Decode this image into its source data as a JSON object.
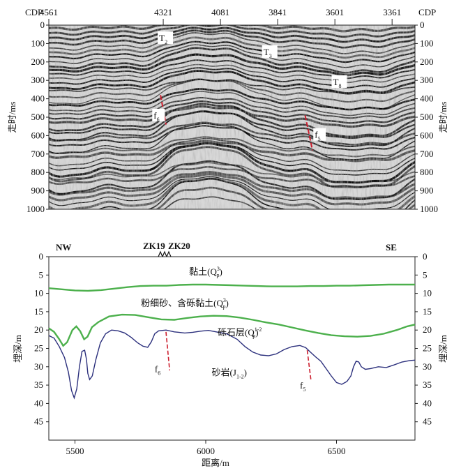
{
  "seismic_section": {
    "cdp_label": "CDP",
    "cdp_ticks": [
      "4561",
      "4321",
      "4081",
      "3841",
      "3601",
      "3361"
    ],
    "cdp_tick_pos": [
      0.0,
      0.3125,
      0.4688,
      0.625,
      0.7813,
      0.9375
    ],
    "time_axis_label": "走时/ms",
    "time_ticks": [
      0,
      100,
      200,
      300,
      400,
      500,
      600,
      700,
      800,
      900,
      1000
    ],
    "horizons": [
      {
        "label": "T",
        "sub": "2",
        "x": 0.305,
        "y_ms": 80
      },
      {
        "label": "T",
        "sub": "3",
        "x": 0.59,
        "y_ms": 155
      },
      {
        "label": "T",
        "sub": "8",
        "x": 0.78,
        "y_ms": 318
      }
    ],
    "faults": [
      {
        "label": "f",
        "sub": "6",
        "x": 0.29,
        "y_ms": 500,
        "trace": [
          [
            0.305,
            380
          ],
          [
            0.32,
            540
          ]
        ]
      },
      {
        "label": "f",
        "sub": "5",
        "x": 0.73,
        "y_ms": 605,
        "trace": [
          [
            0.7,
            490
          ],
          [
            0.72,
            680
          ]
        ]
      }
    ],
    "colors": {
      "trace": "#000000",
      "fault": "#cc1f2f"
    }
  },
  "depth_profile": {
    "left_title": "NW",
    "right_title": "SE",
    "boreholes": [
      "ZK19",
      "ZK20"
    ],
    "x_axis_label": "距离/m",
    "y_axis_label": "埋深/m",
    "xlim": [
      5400,
      6800
    ],
    "ylim": [
      0,
      50
    ],
    "x_ticks": [
      5500,
      6000,
      6500
    ],
    "y_ticks": [
      0,
      5,
      10,
      15,
      20,
      25,
      30,
      35,
      40,
      45
    ],
    "layers": [
      {
        "name": "黏土(Q",
        "sup": "3",
        "sub": "p",
        "tail": ")",
        "x": 6000,
        "y": 4
      },
      {
        "name": "粉细砂、含砾黏土(Q",
        "sup": "3",
        "sub": "p",
        "tail": ")",
        "x": 5920,
        "y": 12.5
      },
      {
        "name": "砾石层(Q",
        "sup": "1-2",
        "sub": "p",
        "tail": ")",
        "x": 6130,
        "y": 20.5
      },
      {
        "name": "砂岩(J",
        "sup": "",
        "sub": "1-2",
        "tail": ")",
        "x": 6090,
        "y": 31.5
      }
    ],
    "faults": [
      {
        "label": "f",
        "sub": "6",
        "x": 5805,
        "y": 30.5,
        "trace": [
          [
            5848,
            20.5
          ],
          [
            5862,
            31
          ]
        ]
      },
      {
        "label": "f",
        "sub": "5",
        "x": 6360,
        "y": 35,
        "trace": [
          [
            6388,
            25.5
          ],
          [
            6402,
            33.5
          ]
        ]
      }
    ],
    "boundary_colors": {
      "green": "#4cb04c",
      "blue": "#2b2f7c",
      "fault": "#cc1f2f"
    },
    "green_upper": [
      [
        5400,
        8.6
      ],
      [
        5450,
        8.9
      ],
      [
        5500,
        9.2
      ],
      [
        5550,
        9.3
      ],
      [
        5600,
        9.1
      ],
      [
        5650,
        8.7
      ],
      [
        5700,
        8.3
      ],
      [
        5750,
        8.0
      ],
      [
        5800,
        7.9
      ],
      [
        5850,
        7.9
      ],
      [
        5900,
        7.7
      ],
      [
        5950,
        7.6
      ],
      [
        6000,
        7.6
      ],
      [
        6050,
        7.7
      ],
      [
        6100,
        7.8
      ],
      [
        6150,
        7.9
      ],
      [
        6200,
        8.0
      ],
      [
        6250,
        8.1
      ],
      [
        6300,
        8.1
      ],
      [
        6350,
        8.1
      ],
      [
        6400,
        8.0
      ],
      [
        6450,
        8.0
      ],
      [
        6500,
        7.9
      ],
      [
        6550,
        7.9
      ],
      [
        6600,
        7.8
      ],
      [
        6650,
        7.7
      ],
      [
        6700,
        7.6
      ],
      [
        6750,
        7.6
      ],
      [
        6800,
        7.6
      ]
    ],
    "green_lower": [
      [
        5400,
        19.5
      ],
      [
        5420,
        20.5
      ],
      [
        5440,
        22.5
      ],
      [
        5455,
        24.3
      ],
      [
        5470,
        23.3
      ],
      [
        5490,
        20.0
      ],
      [
        5505,
        19.0
      ],
      [
        5520,
        20.3
      ],
      [
        5535,
        22.5
      ],
      [
        5548,
        21.8
      ],
      [
        5565,
        19.2
      ],
      [
        5590,
        17.8
      ],
      [
        5630,
        16.3
      ],
      [
        5680,
        15.8
      ],
      [
        5730,
        15.9
      ],
      [
        5780,
        16.5
      ],
      [
        5830,
        17.1
      ],
      [
        5880,
        17.2
      ],
      [
        5930,
        16.7
      ],
      [
        5980,
        16.3
      ],
      [
        6030,
        16.1
      ],
      [
        6080,
        16.2
      ],
      [
        6130,
        16.6
      ],
      [
        6180,
        17.2
      ],
      [
        6230,
        17.9
      ],
      [
        6280,
        18.5
      ],
      [
        6330,
        19.3
      ],
      [
        6380,
        20.1
      ],
      [
        6430,
        20.8
      ],
      [
        6480,
        21.4
      ],
      [
        6530,
        21.7
      ],
      [
        6580,
        21.8
      ],
      [
        6630,
        21.6
      ],
      [
        6680,
        21.0
      ],
      [
        6730,
        20.0
      ],
      [
        6770,
        19.0
      ],
      [
        6800,
        18.5
      ]
    ],
    "blue": [
      [
        5400,
        21.5
      ],
      [
        5420,
        22.2
      ],
      [
        5440,
        24.5
      ],
      [
        5460,
        27.5
      ],
      [
        5475,
        31.5
      ],
      [
        5487,
        36.5
      ],
      [
        5497,
        38.5
      ],
      [
        5507,
        36.0
      ],
      [
        5517,
        30.0
      ],
      [
        5527,
        25.8
      ],
      [
        5537,
        25.5
      ],
      [
        5544,
        28.0
      ],
      [
        5549,
        31.8
      ],
      [
        5556,
        33.5
      ],
      [
        5566,
        32.5
      ],
      [
        5580,
        28.0
      ],
      [
        5597,
        23.5
      ],
      [
        5617,
        21.0
      ],
      [
        5640,
        20.0
      ],
      [
        5665,
        20.2
      ],
      [
        5690,
        20.8
      ],
      [
        5715,
        22.0
      ],
      [
        5740,
        23.5
      ],
      [
        5760,
        24.4
      ],
      [
        5778,
        24.7
      ],
      [
        5792,
        23.2
      ],
      [
        5805,
        21.0
      ],
      [
        5820,
        20.2
      ],
      [
        5848,
        20.0
      ],
      [
        5880,
        20.5
      ],
      [
        5920,
        20.8
      ],
      [
        5950,
        20.6
      ],
      [
        5980,
        20.3
      ],
      [
        6010,
        20.1
      ],
      [
        6040,
        20.5
      ],
      [
        6080,
        21.0
      ],
      [
        6120,
        22.5
      ],
      [
        6150,
        24.5
      ],
      [
        6180,
        26.0
      ],
      [
        6210,
        26.8
      ],
      [
        6240,
        27.0
      ],
      [
        6270,
        26.5
      ],
      [
        6300,
        25.3
      ],
      [
        6330,
        24.5
      ],
      [
        6360,
        24.2
      ],
      [
        6382,
        24.8
      ],
      [
        6400,
        26.0
      ],
      [
        6420,
        27.3
      ],
      [
        6440,
        28.5
      ],
      [
        6460,
        30.5
      ],
      [
        6480,
        32.5
      ],
      [
        6500,
        34.3
      ],
      [
        6520,
        34.8
      ],
      [
        6540,
        34.0
      ],
      [
        6555,
        32.5
      ],
      [
        6565,
        30.0
      ],
      [
        6575,
        28.5
      ],
      [
        6585,
        28.7
      ],
      [
        6595,
        30.0
      ],
      [
        6610,
        30.7
      ],
      [
        6630,
        30.5
      ],
      [
        6660,
        30.0
      ],
      [
        6690,
        30.2
      ],
      [
        6720,
        29.5
      ],
      [
        6750,
        28.7
      ],
      [
        6780,
        28.3
      ],
      [
        6800,
        28.2
      ]
    ]
  }
}
